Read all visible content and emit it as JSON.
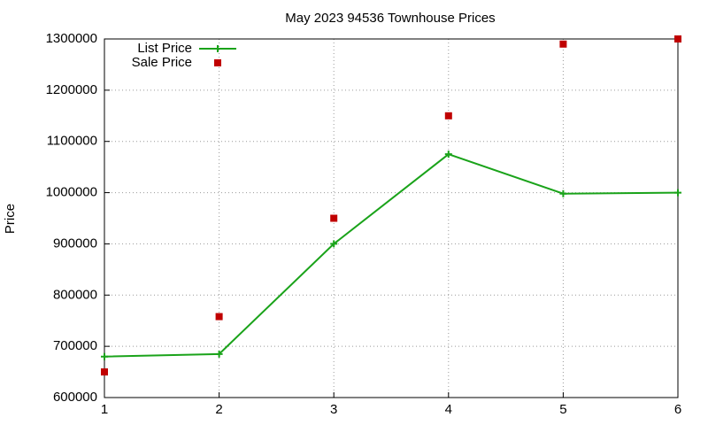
{
  "chart_data": {
    "type": "line",
    "title": "May 2023 94536 Townhouse Prices",
    "y_label": "Price",
    "x": [
      1,
      2,
      3,
      4,
      5,
      6
    ],
    "series": [
      {
        "name": "List Price",
        "color": "#1aa31a",
        "mode": "linespoints",
        "values": [
          680000,
          685000,
          900000,
          1075000,
          998000,
          1000000
        ]
      },
      {
        "name": "Sale Price",
        "color": "#c00000",
        "mode": "points",
        "values": [
          650000,
          758000,
          950000,
          1150000,
          1290000,
          1300000
        ]
      }
    ],
    "xlim": [
      1,
      6
    ],
    "xticks": [
      1,
      2,
      3,
      4,
      5,
      6
    ],
    "ylim": [
      600000,
      1300000
    ],
    "yticks": [
      600000,
      700000,
      800000,
      900000,
      1000000,
      1100000,
      1200000,
      1300000
    ],
    "grid": true,
    "legend": "top-left"
  }
}
